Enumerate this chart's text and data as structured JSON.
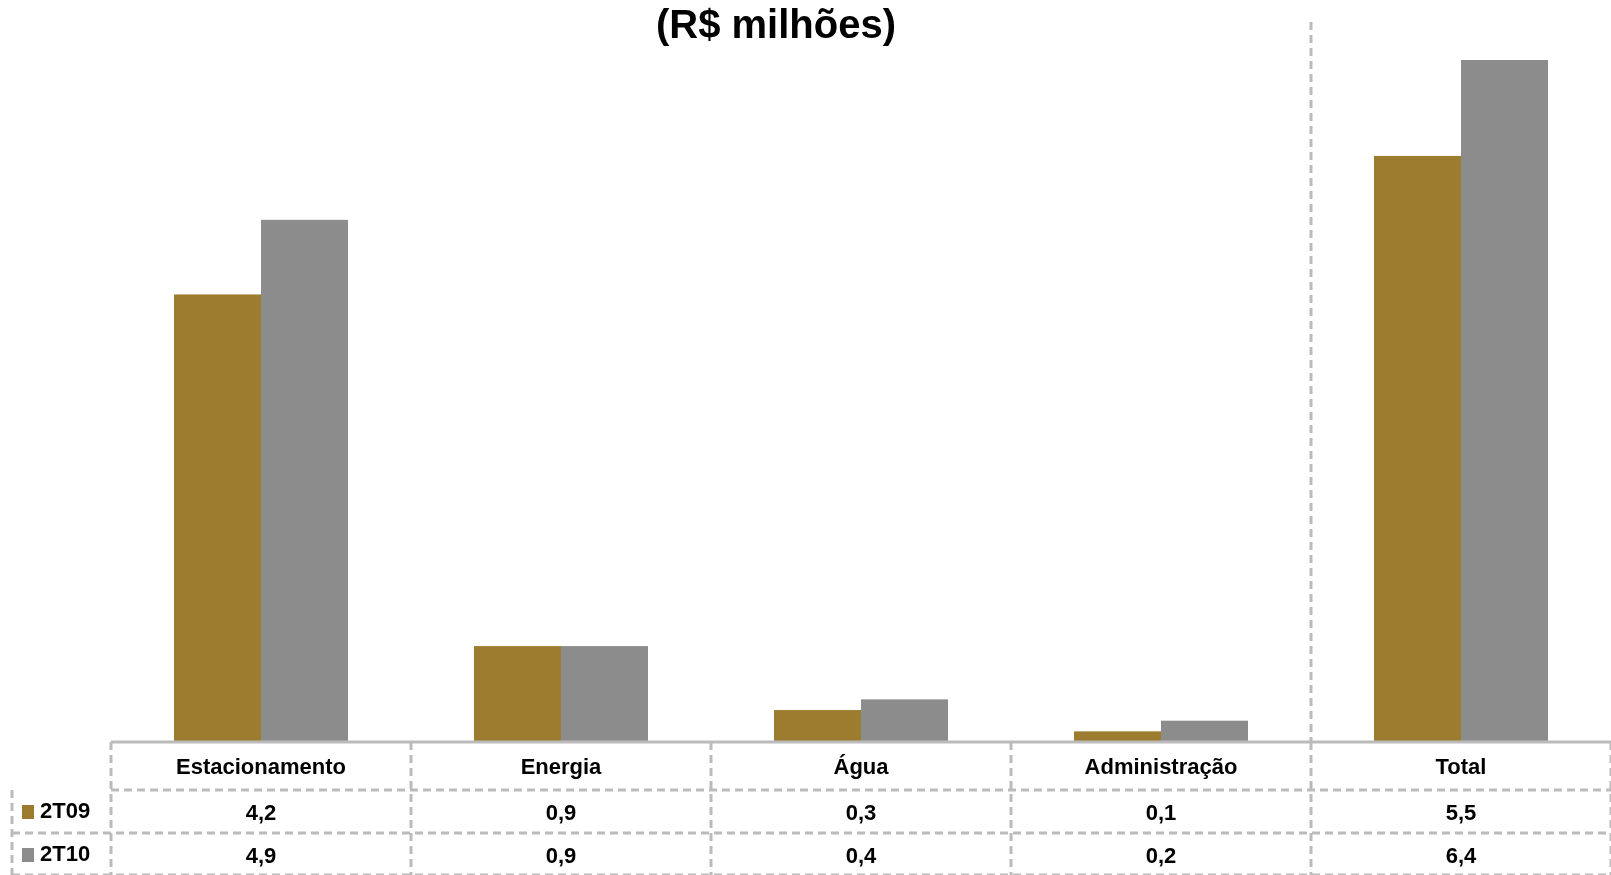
{
  "chart_data": {
    "type": "bar",
    "title": "(R$ milhões)",
    "categories": [
      "Estacionamento",
      "Energia",
      "Água",
      "Administração",
      "Total"
    ],
    "series": [
      {
        "name": "2T09",
        "color": "#9c7c2e",
        "values": [
          4.2,
          0.9,
          0.3,
          0.1,
          5.5
        ],
        "value_labels": [
          "4,2",
          "0,9",
          "0,3",
          "0,1",
          "5,5"
        ]
      },
      {
        "name": "2T10",
        "color": "#8c8c8c",
        "values": [
          4.9,
          0.9,
          0.4,
          0.2,
          6.4
        ],
        "value_labels": [
          "4,9",
          "0,9",
          "0,4",
          "0,2",
          "6,4"
        ]
      }
    ],
    "legend": "bottom left"
  }
}
